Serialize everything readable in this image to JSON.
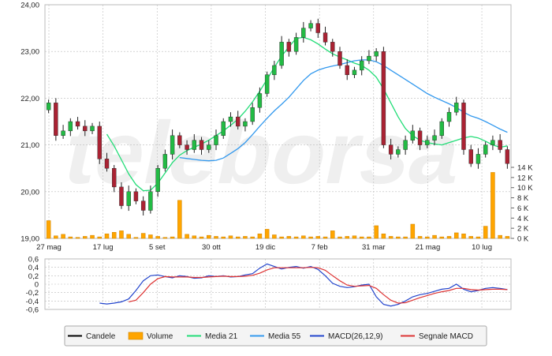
{
  "chart_data": [
    {
      "type": "candlestick",
      "x_ticks": [
        "27 mag",
        "17 lug",
        "5 set",
        "30 ott",
        "19 dic",
        "7 feb",
        "31 mar",
        "21 mag",
        "10 lug"
      ],
      "y_ticks": [
        "19,00",
        "20,00",
        "21,00",
        "22,00",
        "23,00",
        "24,00"
      ],
      "ylim": [
        19,
        24
      ],
      "volume_ticks": [
        "0 K",
        "2 K",
        "4 K",
        "6 K",
        "8 K",
        "10 K",
        "12 K",
        "14 K"
      ],
      "volume_lim": [
        0,
        14000
      ],
      "grid": true,
      "closes": [
        21.9,
        21.2,
        21.3,
        21.5,
        21.4,
        21.3,
        21.4,
        20.7,
        20.5,
        20.1,
        19.7,
        20.0,
        19.8,
        19.6,
        20.0,
        20.5,
        20.8,
        21.2,
        21.0,
        20.9,
        21.1,
        20.9,
        21.0,
        21.2,
        21.5,
        21.6,
        21.4,
        21.5,
        21.8,
        22.1,
        22.5,
        22.7,
        23.2,
        23.0,
        23.3,
        23.5,
        23.6,
        23.4,
        23.2,
        23.0,
        22.7,
        22.5,
        22.6,
        22.8,
        22.9,
        23.0,
        21.0,
        20.8,
        20.9,
        21.1,
        21.3,
        21.0,
        21.1,
        21.2,
        21.5,
        21.7,
        21.9,
        20.9,
        20.6,
        20.8,
        21.0,
        21.1,
        20.9,
        20.6
      ],
      "volume": [
        3500,
        500,
        800,
        300,
        200,
        400,
        600,
        300,
        900,
        1200,
        1500,
        800,
        200,
        1000,
        700,
        400,
        200,
        300,
        7500,
        800,
        500,
        300,
        600,
        400,
        300,
        500,
        300,
        400,
        300,
        900,
        1800,
        700,
        300,
        400,
        300,
        500,
        300,
        400,
        300,
        1500,
        300,
        400,
        500,
        300,
        300,
        2500,
        900,
        400,
        300,
        300,
        2800,
        400,
        300,
        600,
        300,
        400,
        1100,
        900,
        400,
        300,
        2400,
        13000,
        600,
        400
      ],
      "series": [
        {
          "name": "Candele",
          "color": "#000000"
        },
        {
          "name": "Volume",
          "color": "#ffa500"
        },
        {
          "name": "Media 21",
          "color": "#22dd77",
          "x": [
            8,
            9,
            10,
            11,
            12,
            13,
            14,
            15,
            16,
            17,
            18,
            19,
            20,
            21,
            22,
            23,
            24,
            25,
            26,
            27,
            28,
            29,
            30,
            31,
            32,
            33,
            34,
            35,
            36,
            37,
            38,
            39,
            40,
            41,
            42,
            43,
            44,
            45,
            46,
            47,
            48,
            49,
            50,
            51,
            52,
            53,
            54,
            55,
            56,
            57,
            58,
            59,
            60,
            61,
            62,
            63
          ],
          "y": [
            21.23,
            20.98,
            20.68,
            20.38,
            20.15,
            20.02,
            20.03,
            20.18,
            20.4,
            20.62,
            20.78,
            20.88,
            20.95,
            21.02,
            21.1,
            21.2,
            21.3,
            21.42,
            21.55,
            21.72,
            21.92,
            22.15,
            22.4,
            22.66,
            22.9,
            23.1,
            23.28,
            23.3,
            23.25,
            23.16,
            23.05,
            22.95,
            22.88,
            22.82,
            22.75,
            22.7,
            22.6,
            22.45,
            22.2,
            21.9,
            21.6,
            21.35,
            21.2,
            21.1,
            21.05,
            21.02,
            21.0,
            21.05,
            21.1,
            21.15,
            21.18,
            21.15,
            21.08,
            21.0,
            20.95,
            20.98
          ]
        },
        {
          "name": "Media 55",
          "color": "#3399ee",
          "x": [
            18,
            19,
            20,
            21,
            22,
            23,
            24,
            25,
            26,
            27,
            28,
            29,
            30,
            31,
            32,
            33,
            34,
            35,
            36,
            37,
            38,
            39,
            40,
            41,
            42,
            43,
            44,
            45,
            46,
            47,
            48,
            49,
            50,
            51,
            52,
            53,
            54,
            55,
            56,
            57,
            58,
            59,
            60,
            61,
            62,
            63
          ],
          "y": [
            20.73,
            20.71,
            20.69,
            20.67,
            20.66,
            20.67,
            20.72,
            20.82,
            20.92,
            21.05,
            21.22,
            21.4,
            21.57,
            21.73,
            21.87,
            22.02,
            22.2,
            22.38,
            22.52,
            22.6,
            22.65,
            22.69,
            22.72,
            22.76,
            22.8,
            22.82,
            22.82,
            22.78,
            22.7,
            22.6,
            22.5,
            22.4,
            22.3,
            22.2,
            22.1,
            22.02,
            21.95,
            21.88,
            21.8,
            21.7,
            21.62,
            21.57,
            21.5,
            21.42,
            21.34,
            21.27
          ]
        }
      ]
    },
    {
      "type": "line",
      "y_ticks": [
        "0,6",
        "0,4",
        "0,2",
        "0",
        "-0,2",
        "-0,4",
        "-0,6"
      ],
      "ylim": [
        -0.6,
        0.6
      ],
      "grid": true,
      "series": [
        {
          "name": "MACD(26,12,9)",
          "color": "#2244cc",
          "x": [
            7,
            8,
            9,
            10,
            11,
            12,
            13,
            14,
            15,
            16,
            17,
            18,
            19,
            20,
            21,
            22,
            23,
            24,
            25,
            26,
            27,
            28,
            29,
            30,
            31,
            32,
            33,
            34,
            35,
            36,
            37,
            38,
            39,
            40,
            41,
            42,
            43,
            44,
            45,
            46,
            47,
            48,
            49,
            50,
            51,
            52,
            53,
            54,
            55,
            56,
            57,
            58,
            59,
            60,
            61,
            62,
            63
          ],
          "y": [
            -0.45,
            -0.47,
            -0.45,
            -0.42,
            -0.35,
            -0.15,
            0.08,
            0.2,
            0.22,
            0.18,
            0.15,
            0.2,
            0.18,
            0.14,
            0.15,
            0.2,
            0.18,
            0.2,
            0.17,
            0.18,
            0.22,
            0.25,
            0.38,
            0.48,
            0.42,
            0.36,
            0.4,
            0.42,
            0.38,
            0.42,
            0.35,
            0.2,
            0.02,
            -0.05,
            -0.08,
            -0.06,
            -0.02,
            0.0,
            -0.3,
            -0.48,
            -0.52,
            -0.48,
            -0.4,
            -0.3,
            -0.25,
            -0.22,
            -0.17,
            -0.12,
            -0.1,
            0.0,
            -0.12,
            -0.18,
            -0.15,
            -0.1,
            -0.08,
            -0.1,
            -0.13
          ]
        },
        {
          "name": "Segnale MACD",
          "color": "#dd3333",
          "x": [
            11,
            12,
            13,
            14,
            15,
            16,
            17,
            18,
            19,
            20,
            21,
            22,
            23,
            24,
            25,
            26,
            27,
            28,
            29,
            30,
            31,
            32,
            33,
            34,
            35,
            36,
            37,
            38,
            39,
            40,
            41,
            42,
            43,
            44,
            45,
            46,
            47,
            48,
            49,
            50,
            51,
            52,
            53,
            54,
            55,
            56,
            57,
            58,
            59,
            60,
            61,
            62,
            63
          ],
          "y": [
            -0.42,
            -0.38,
            -0.2,
            0.0,
            0.13,
            0.18,
            0.17,
            0.17,
            0.17,
            0.16,
            0.16,
            0.17,
            0.18,
            0.19,
            0.18,
            0.18,
            0.19,
            0.21,
            0.26,
            0.34,
            0.39,
            0.39,
            0.39,
            0.39,
            0.39,
            0.4,
            0.39,
            0.33,
            0.2,
            0.08,
            -0.02,
            -0.05,
            -0.04,
            -0.03,
            -0.1,
            -0.25,
            -0.38,
            -0.45,
            -0.44,
            -0.38,
            -0.32,
            -0.27,
            -0.22,
            -0.18,
            -0.15,
            -0.1,
            -0.1,
            -0.13,
            -0.14,
            -0.13,
            -0.12,
            -0.12,
            -0.13
          ]
        }
      ]
    }
  ],
  "legend": [
    {
      "label": "Candele",
      "color": "#000000",
      "icon": "line"
    },
    {
      "label": "Volume",
      "color": "#ffa500",
      "icon": "box"
    },
    {
      "label": "Media 21",
      "color": "#22dd77",
      "icon": "line"
    },
    {
      "label": "Media 55",
      "color": "#3399ee",
      "icon": "line"
    },
    {
      "label": "MACD(26,12,9)",
      "color": "#2244cc",
      "icon": "line"
    },
    {
      "label": "Segnale MACD",
      "color": "#dd3333",
      "icon": "line"
    }
  ],
  "watermark": "teleborsa",
  "colors": {
    "up": "#22bb44",
    "down": "#aa2233",
    "volume": "#ffa500",
    "grid": "#bbbbbb"
  }
}
